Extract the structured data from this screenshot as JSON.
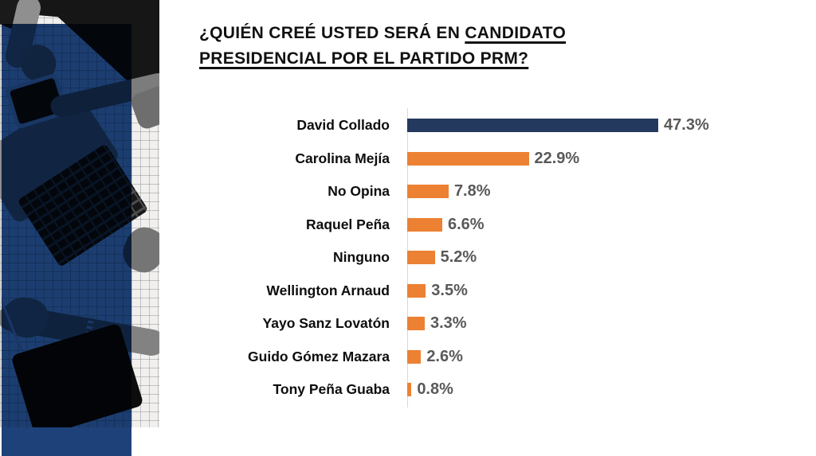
{
  "title": {
    "prefix": "¿QUIÉN CREÉ USTED SERÁ EN ",
    "underline_line1": "CANDIDATO",
    "underline_line2": "PRESIDENCIAL POR EL PARTIDO PRM?"
  },
  "chart_data": {
    "type": "bar",
    "orientation": "horizontal",
    "title": "¿QUIÉN CREÉ USTED SERÁ EN CANDIDATO PRESIDENCIAL POR EL PARTIDO PRM?",
    "categories": [
      "David Collado",
      "Carolina Mejía",
      "No Opina",
      "Raquel Peña",
      "Ninguno",
      "Wellington Arnaud",
      "Yayo Sanz Lovatón",
      "Guido Gómez Mazara",
      "Tony Peña Guaba"
    ],
    "values": [
      47.3,
      22.9,
      7.8,
      6.6,
      5.2,
      3.5,
      3.3,
      2.6,
      0.8
    ],
    "value_labels": [
      "47.3%",
      "22.9%",
      "7.8%",
      "6.6%",
      "5.2%",
      "3.5%",
      "3.3%",
      "2.6%",
      "0.8%"
    ],
    "xlim": [
      0,
      50
    ],
    "grid": false,
    "legend": false,
    "highlight_index": 0,
    "colors": {
      "highlight_bar": "#24395E",
      "default_bar": "#EC8133",
      "value_text": "#595959",
      "label_text": "#0D0D0D",
      "axis_line": "#D9D9D9"
    }
  },
  "decor": {
    "photo_description": "grayscale-workspace-photo",
    "overlay_color": "#1D4178"
  }
}
